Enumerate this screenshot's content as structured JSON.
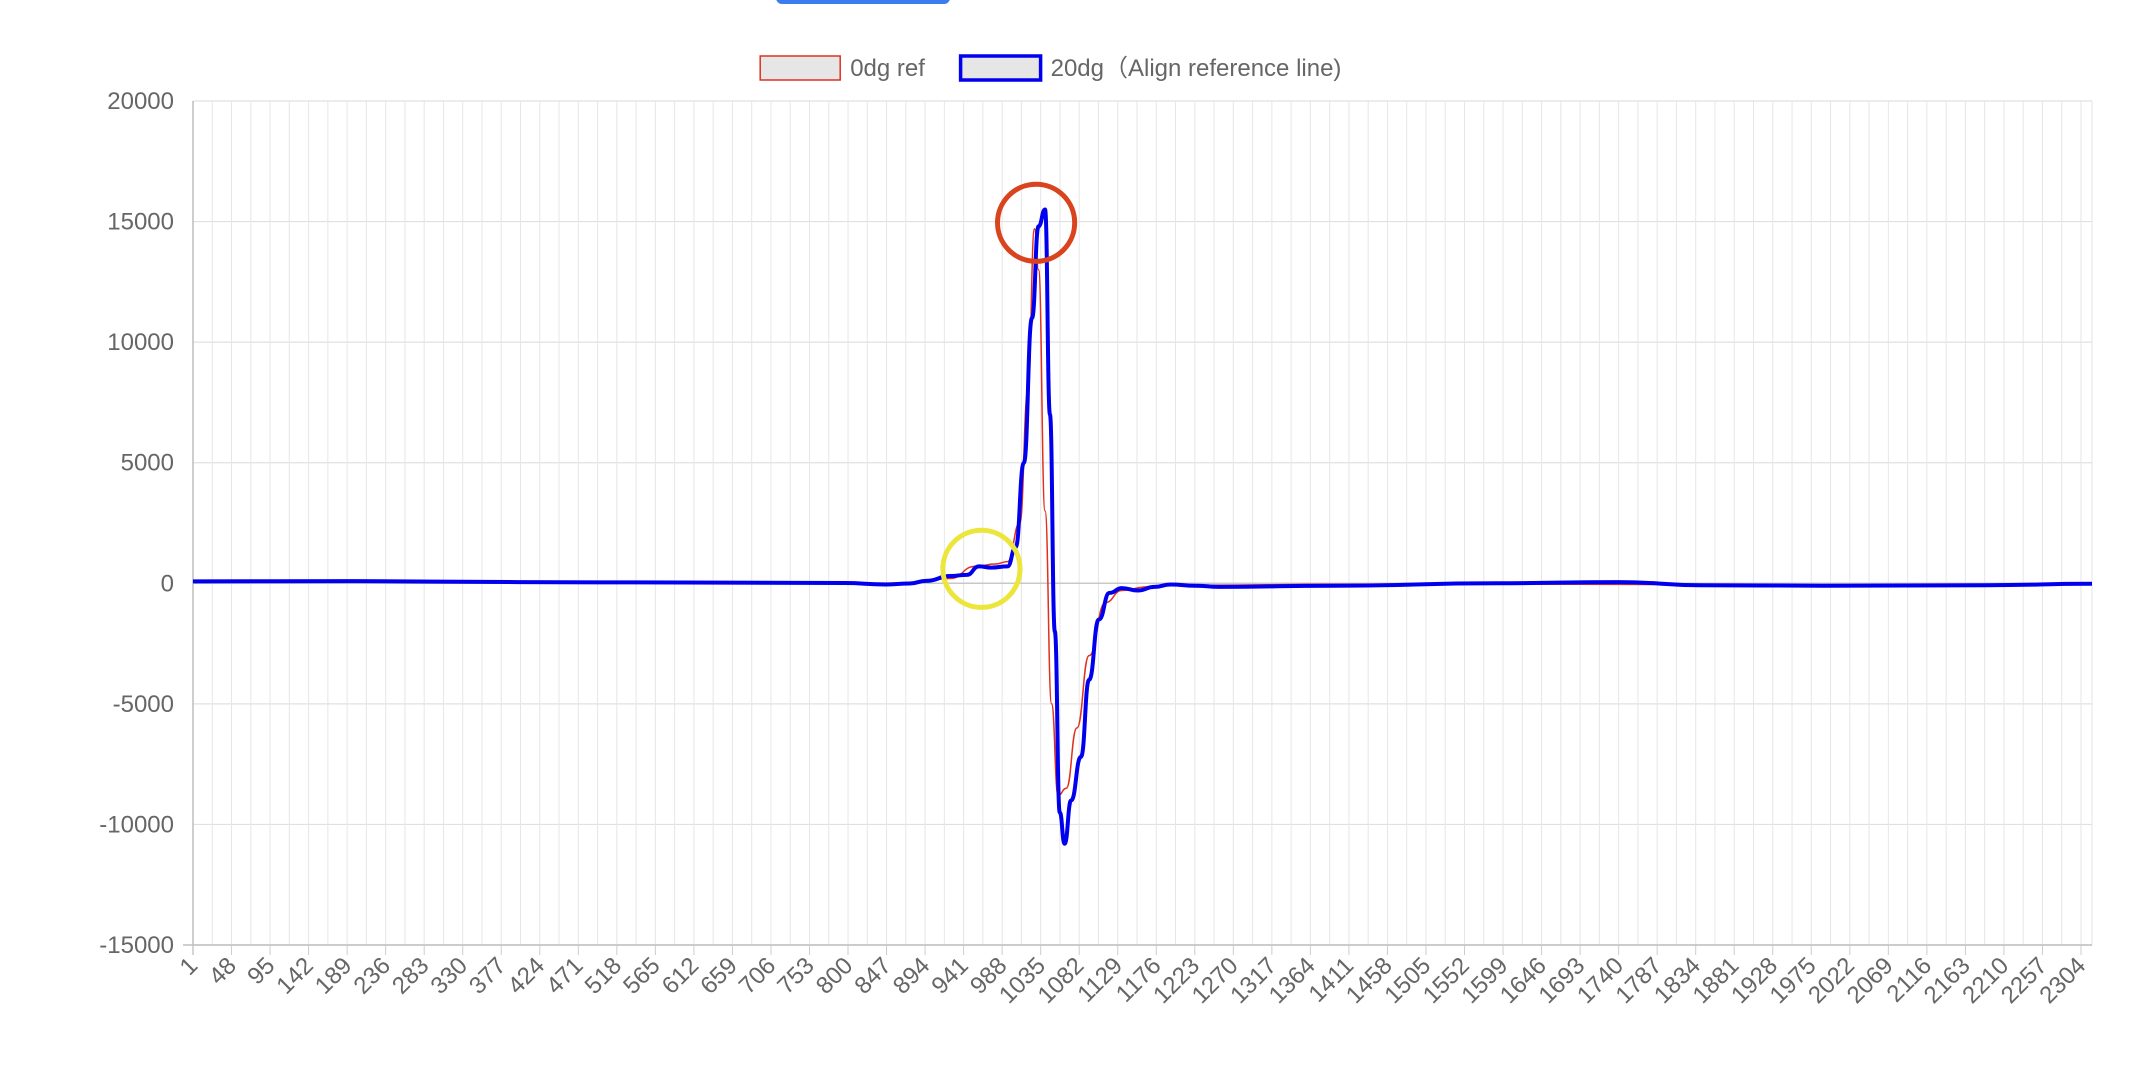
{
  "page": {
    "top_button_color": "#3b7ded"
  },
  "chart_data": {
    "type": "line",
    "title": "",
    "xlabel": "",
    "ylabel": "",
    "ylim": [
      -15000,
      20000
    ],
    "yticks": [
      20000,
      15000,
      10000,
      5000,
      0,
      -5000,
      -10000,
      -15000
    ],
    "x_range": [
      1,
      2330
    ],
    "x_tick_labels": [
      "1",
      "48",
      "95",
      "142",
      "189",
      "236",
      "283",
      "330",
      "377",
      "424",
      "471",
      "518",
      "565",
      "612",
      "659",
      "706",
      "753",
      "800",
      "847",
      "894",
      "941",
      "988",
      "1035",
      "1082",
      "1129",
      "1176",
      "1223",
      "1270",
      "1317",
      "1364",
      "1411",
      "1458",
      "1505",
      "1552",
      "1599",
      "1646",
      "1693",
      "1740",
      "1787",
      "1834",
      "1881",
      "1928",
      "1975",
      "2022",
      "2069",
      "2116",
      "2163",
      "2210",
      "2257",
      "2304"
    ],
    "grid": true,
    "legend_position": "top-center",
    "series": [
      {
        "name": "0dg ref",
        "color": "#e0301e",
        "line_width": 1.5,
        "points": [
          [
            1,
            60
          ],
          [
            200,
            70
          ],
          [
            400,
            30
          ],
          [
            600,
            20
          ],
          [
            800,
            0
          ],
          [
            880,
            10
          ],
          [
            930,
            200
          ],
          [
            960,
            700
          ],
          [
            985,
            800
          ],
          [
            1000,
            900
          ],
          [
            1015,
            2500
          ],
          [
            1025,
            8000
          ],
          [
            1033,
            14700
          ],
          [
            1038,
            13000
          ],
          [
            1046,
            3000
          ],
          [
            1054,
            -5000
          ],
          [
            1062,
            -8800
          ],
          [
            1072,
            -8500
          ],
          [
            1085,
            -6000
          ],
          [
            1100,
            -3000
          ],
          [
            1120,
            -800
          ],
          [
            1140,
            -300
          ],
          [
            1170,
            -150
          ],
          [
            1200,
            -50
          ],
          [
            1240,
            -80
          ],
          [
            1400,
            -40
          ],
          [
            1600,
            -30
          ],
          [
            1800,
            -50
          ],
          [
            2000,
            -80
          ],
          [
            2200,
            -60
          ],
          [
            2330,
            -30
          ]
        ]
      },
      {
        "name": "20dg（Align reference line)",
        "color": "#0000ee",
        "line_width": 4,
        "points": [
          [
            1,
            80
          ],
          [
            200,
            90
          ],
          [
            400,
            50
          ],
          [
            600,
            30
          ],
          [
            800,
            10
          ],
          [
            850,
            -50
          ],
          [
            880,
            -10
          ],
          [
            900,
            100
          ],
          [
            930,
            300
          ],
          [
            950,
            350
          ],
          [
            965,
            700
          ],
          [
            980,
            650
          ],
          [
            1000,
            700
          ],
          [
            1010,
            1500
          ],
          [
            1020,
            5000
          ],
          [
            1030,
            11000
          ],
          [
            1038,
            14800
          ],
          [
            1046,
            15500
          ],
          [
            1052,
            7000
          ],
          [
            1058,
            -2000
          ],
          [
            1064,
            -9500
          ],
          [
            1070,
            -10800
          ],
          [
            1078,
            -9000
          ],
          [
            1090,
            -7200
          ],
          [
            1100,
            -4000
          ],
          [
            1112,
            -1500
          ],
          [
            1125,
            -400
          ],
          [
            1140,
            -200
          ],
          [
            1160,
            -300
          ],
          [
            1180,
            -150
          ],
          [
            1200,
            -50
          ],
          [
            1230,
            -100
          ],
          [
            1260,
            -150
          ],
          [
            1400,
            -100
          ],
          [
            1600,
            0
          ],
          [
            1750,
            50
          ],
          [
            1850,
            -80
          ],
          [
            2000,
            -100
          ],
          [
            2200,
            -80
          ],
          [
            2330,
            -20
          ]
        ]
      }
    ],
    "annotations": [
      {
        "type": "circle",
        "color": "#d9431e",
        "center_data": [
          1035,
          14950
        ],
        "radius_data_y": 1600
      },
      {
        "type": "circle",
        "color": "#ece63c",
        "center_data": [
          968,
          600
        ],
        "radius_data_y": 1600
      }
    ]
  }
}
